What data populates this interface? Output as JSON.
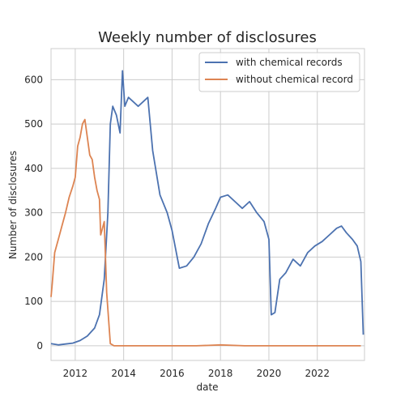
{
  "chart_data": {
    "type": "line",
    "title": "Weekly number of disclosures",
    "xlabel": "date",
    "ylabel": "Number of disclosures",
    "x_unit": "year",
    "xlim": [
      2011.0,
      2023.95
    ],
    "ylim": [
      -33,
      670
    ],
    "xticks": [
      2012,
      2014,
      2016,
      2018,
      2020,
      2022
    ],
    "xtick_labels": [
      "2012",
      "2014",
      "2016",
      "2018",
      "2020",
      "2022"
    ],
    "yticks": [
      0,
      100,
      200,
      300,
      400,
      500,
      600
    ],
    "ytick_labels": [
      "0",
      "100",
      "200",
      "300",
      "400",
      "500",
      "600"
    ],
    "grid": true,
    "legend_position": "top-right",
    "series": [
      {
        "name": "with chemical records",
        "color": "#4c72b0",
        "x": [
          2011.0,
          2011.3,
          2011.6,
          2011.9,
          2012.2,
          2012.5,
          2012.8,
          2013.0,
          2013.2,
          2013.35,
          2013.45,
          2013.55,
          2013.7,
          2013.85,
          2013.95,
          2014.05,
          2014.2,
          2014.4,
          2014.6,
          2014.8,
          2015.0,
          2015.2,
          2015.5,
          2015.8,
          2016.0,
          2016.3,
          2016.6,
          2016.9,
          2017.2,
          2017.5,
          2017.8,
          2018.0,
          2018.3,
          2018.6,
          2018.9,
          2019.2,
          2019.5,
          2019.8,
          2020.0,
          2020.1,
          2020.25,
          2020.45,
          2020.7,
          2021.0,
          2021.3,
          2021.6,
          2021.9,
          2022.2,
          2022.5,
          2022.8,
          2023.0,
          2023.2,
          2023.45,
          2023.65,
          2023.8,
          2023.9
        ],
        "y": [
          5,
          2,
          4,
          6,
          12,
          22,
          40,
          70,
          150,
          300,
          500,
          540,
          520,
          480,
          620,
          540,
          560,
          550,
          540,
          550,
          560,
          440,
          340,
          300,
          260,
          175,
          180,
          200,
          230,
          275,
          310,
          335,
          340,
          325,
          310,
          325,
          300,
          280,
          240,
          70,
          75,
          150,
          165,
          195,
          180,
          210,
          225,
          235,
          250,
          265,
          270,
          255,
          240,
          225,
          190,
          25
        ]
      },
      {
        "name": "without chemical record",
        "color": "#dd8452",
        "x": [
          2011.0,
          2011.05,
          2011.15,
          2011.3,
          2011.45,
          2011.6,
          2011.75,
          2011.9,
          2012.0,
          2012.1,
          2012.2,
          2012.3,
          2012.4,
          2012.5,
          2012.6,
          2012.7,
          2012.8,
          2012.9,
          2013.0,
          2013.05,
          2013.1,
          2013.2,
          2013.3,
          2013.45,
          2013.6,
          2014.0,
          2015.0,
          2016.0,
          2017.0,
          2018.0,
          2019.0,
          2020.0,
          2021.0,
          2022.0,
          2023.0,
          2023.8
        ],
        "y": [
          110,
          140,
          210,
          240,
          270,
          300,
          335,
          360,
          380,
          450,
          470,
          500,
          510,
          470,
          430,
          420,
          380,
          350,
          330,
          250,
          260,
          280,
          120,
          5,
          0,
          0,
          0,
          0,
          0,
          2,
          0,
          0,
          0,
          0,
          0,
          0
        ]
      }
    ]
  }
}
